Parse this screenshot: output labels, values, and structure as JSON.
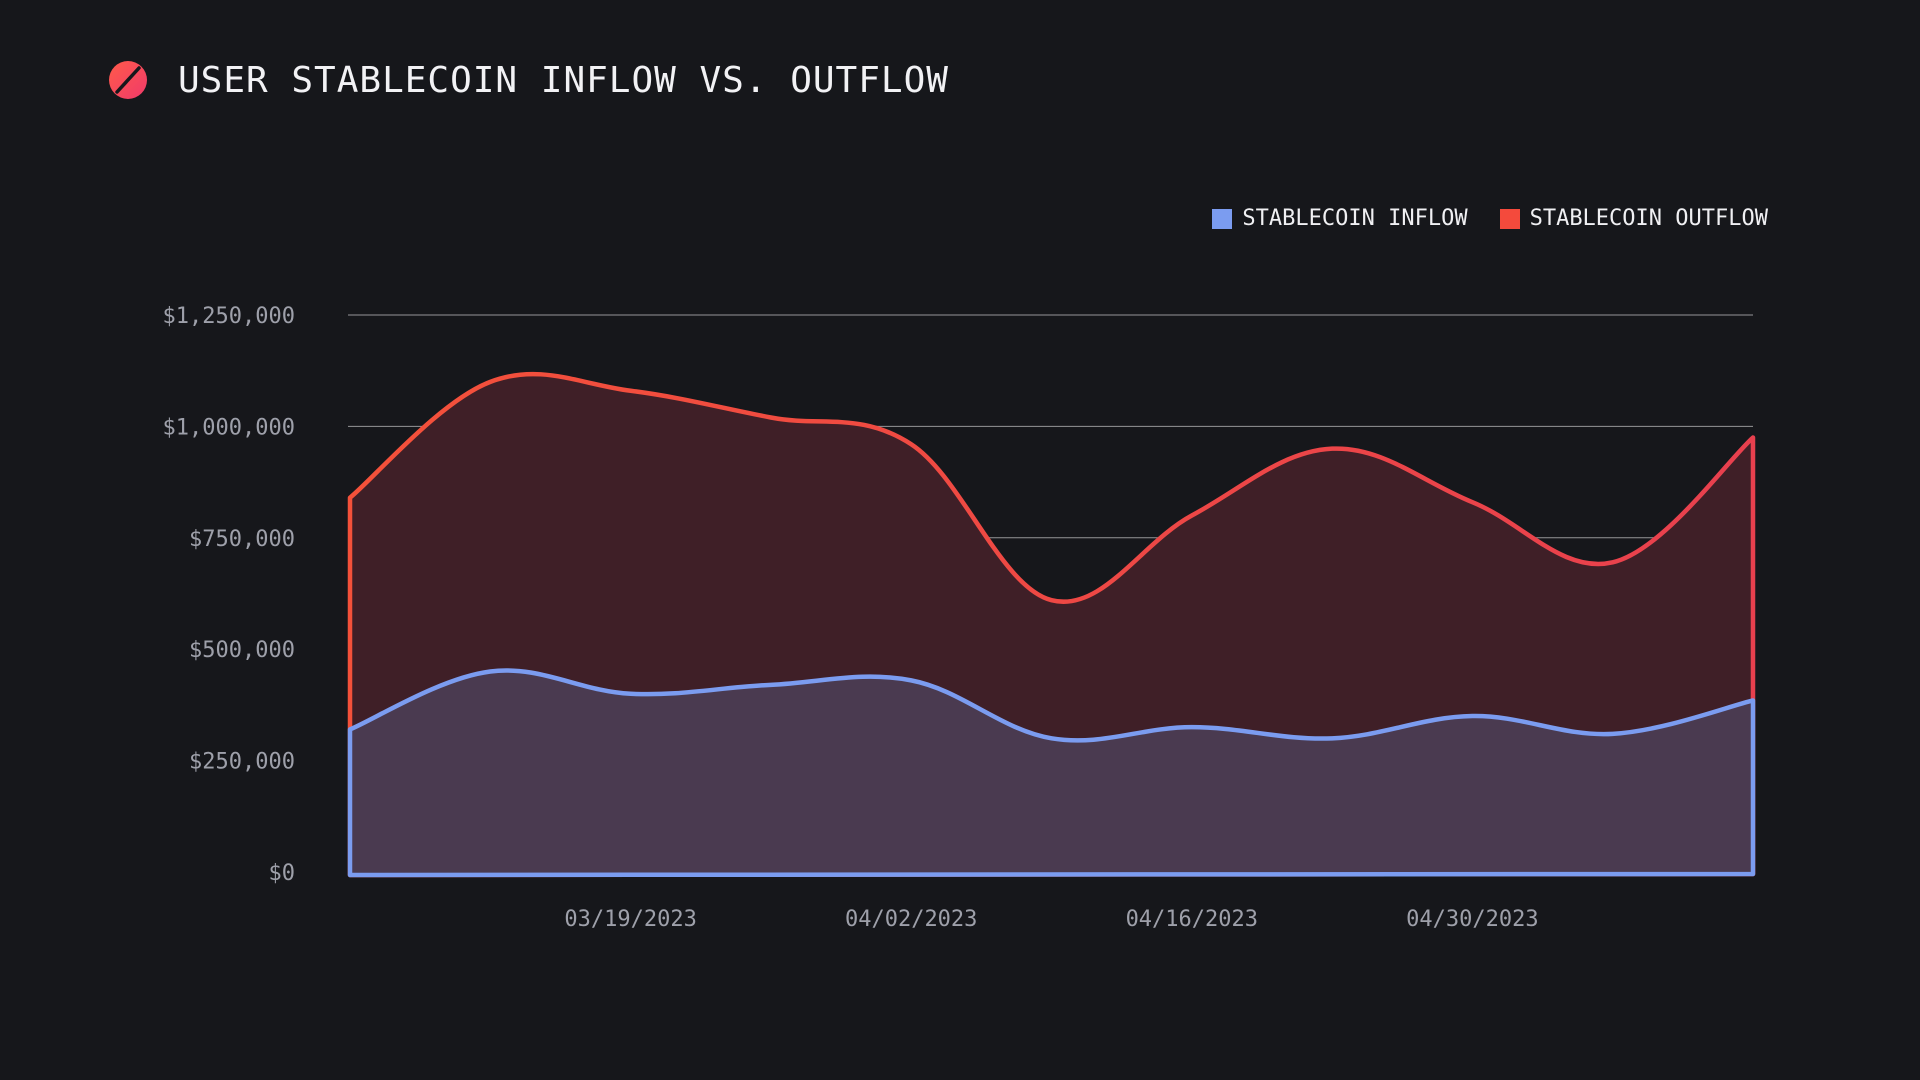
{
  "header": {
    "title": "USER STABLECOIN INFLOW VS. OUTFLOW",
    "logo_icon": "slashed-circle-logo-icon"
  },
  "colors": {
    "background": "#16171b",
    "inflow": "#7b9cf0",
    "outflow": "#f04a4a",
    "outflow_fill": "#3f1f27",
    "inflow_fill": "#4a3a50",
    "grid": "#ffffff",
    "axis_text": "#9ea0aa"
  },
  "chart_data": {
    "type": "area",
    "title": "USER STABLECOIN INFLOW VS. OUTFLOW",
    "xlabel": "",
    "ylabel": "",
    "ylim": [
      0,
      1250000
    ],
    "y_ticks": [
      0,
      250000,
      500000,
      750000,
      1000000,
      1250000
    ],
    "y_tick_labels": [
      "$0",
      "$250,000",
      "$500,000",
      "$750,000",
      "$1,000,000",
      "$1,250,000"
    ],
    "x_ticks": [
      "03/19/2023",
      "04/02/2023",
      "04/16/2023",
      "04/30/2023"
    ],
    "x_tick_labels": [
      "03/19/2023",
      "04/02/2023",
      "04/16/2023",
      "04/30/2023"
    ],
    "grid": true,
    "legend_position": "top-right",
    "x": [
      "03/05/2023",
      "03/12/2023",
      "03/19/2023",
      "03/26/2023",
      "04/02/2023",
      "04/09/2023",
      "04/16/2023",
      "04/23/2023",
      "04/30/2023",
      "05/07/2023",
      "05/14/2023"
    ],
    "series": [
      {
        "name": "STABLECOIN INFLOW",
        "color": "#7b9cf0",
        "values": [
          320000,
          450000,
          400000,
          420000,
          430000,
          300000,
          325000,
          300000,
          350000,
          310000,
          385000
        ]
      },
      {
        "name": "STABLECOIN OUTFLOW",
        "color": "#f04a4a",
        "values": [
          840000,
          1100000,
          1080000,
          1020000,
          960000,
          610000,
          800000,
          950000,
          830000,
          695000,
          975000
        ]
      }
    ]
  }
}
